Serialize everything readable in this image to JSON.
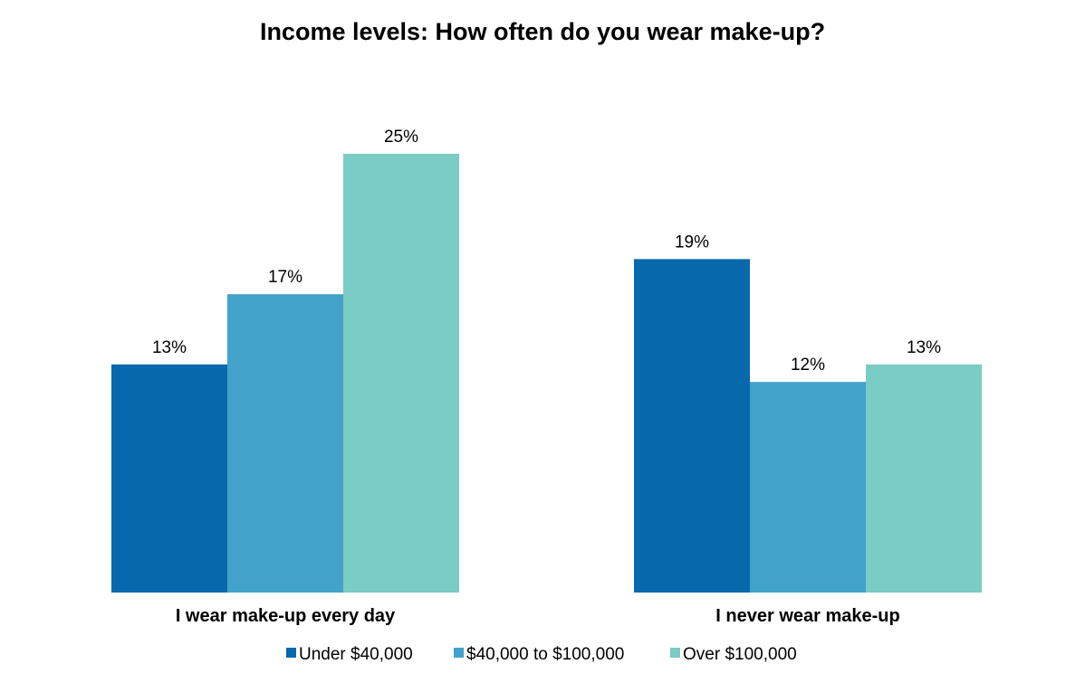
{
  "chart_data": {
    "type": "bar",
    "title": "Income levels: How often do you wear make-up?",
    "xlabel": "",
    "ylabel": "",
    "categories": [
      "I wear make-up every day",
      "I never wear make-up"
    ],
    "series": [
      {
        "name": "Under $40,000",
        "values": [
          13,
          19
        ],
        "labels": [
          "13%",
          "19%"
        ],
        "color": "#0868AC"
      },
      {
        "name": "$40,000 to $100,000",
        "values": [
          17,
          12
        ],
        "labels": [
          "17%",
          "12%"
        ],
        "color": "#43A2CA"
      },
      {
        "name": "Over $100,000",
        "values": [
          25,
          13
        ],
        "labels": [
          "25%",
          "13%"
        ],
        "color": "#7BCCC4"
      }
    ],
    "ylim": [
      0,
      25
    ],
    "grid": false,
    "legend_position": "bottom"
  }
}
